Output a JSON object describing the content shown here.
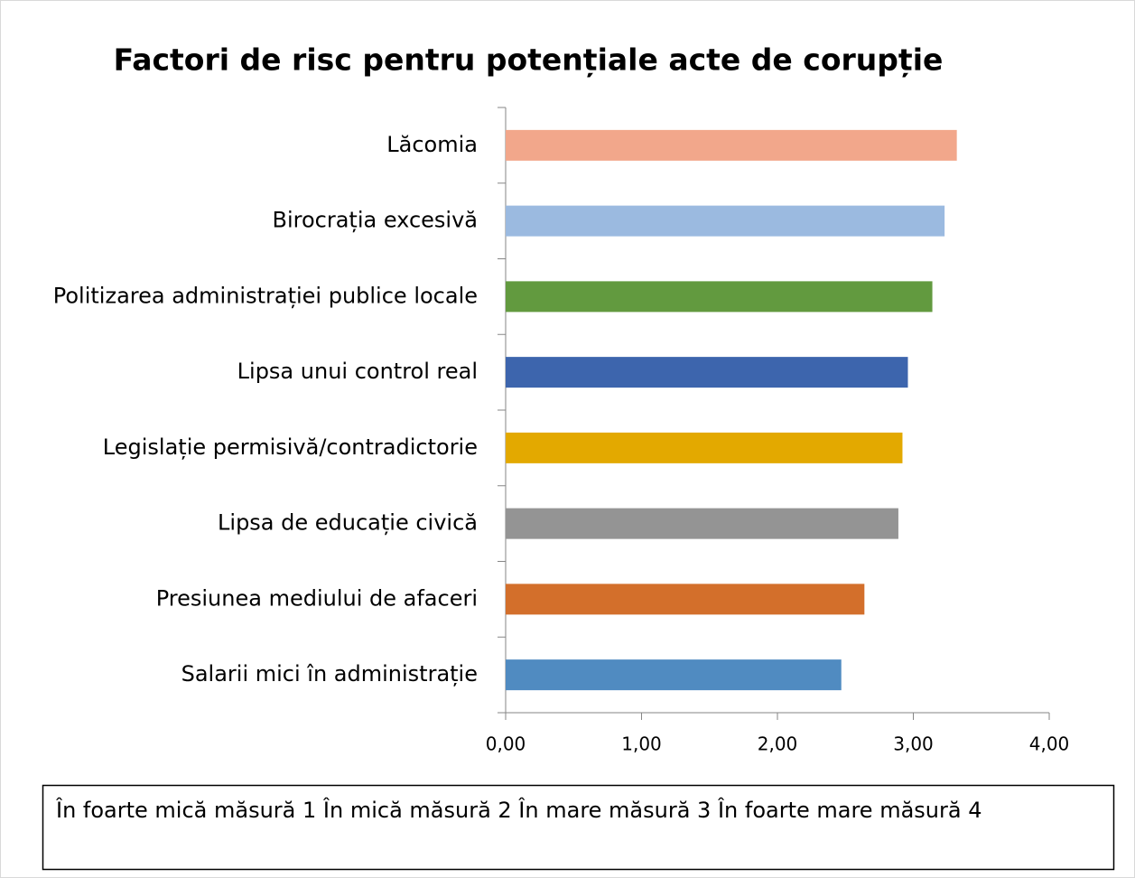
{
  "chart_data": {
    "type": "bar",
    "orientation": "horizontal",
    "title": "Factori de risc pentru potențiale acte de corupție",
    "categories": [
      "Lăcomia",
      "Birocrația excesivă",
      "Politizarea administrației publice locale",
      "Lipsa unui control real",
      "Legislație permisivă/contradictorie",
      "Lipsa de educație civică",
      "Presiunea mediului de afaceri",
      "Salarii mici în administrație"
    ],
    "values": [
      3.32,
      3.23,
      3.14,
      2.96,
      2.92,
      2.89,
      2.64,
      2.47
    ],
    "colors": [
      "#f2a78b",
      "#9bbae0",
      "#629a3f",
      "#3d65ad",
      "#e3a900",
      "#949494",
      "#d36f2b",
      "#508bc1"
    ],
    "xlim": [
      0,
      4
    ],
    "xticks": [
      {
        "value": 0,
        "label": "0,00"
      },
      {
        "value": 1,
        "label": "1,00"
      },
      {
        "value": 2,
        "label": "2,00"
      },
      {
        "value": 3,
        "label": "3,00"
      },
      {
        "value": 4,
        "label": "4,00"
      }
    ],
    "note": "În foarte mică măsură 1 În mică măsură 2 În mare măsură 3 În foarte mare măsură 4"
  }
}
